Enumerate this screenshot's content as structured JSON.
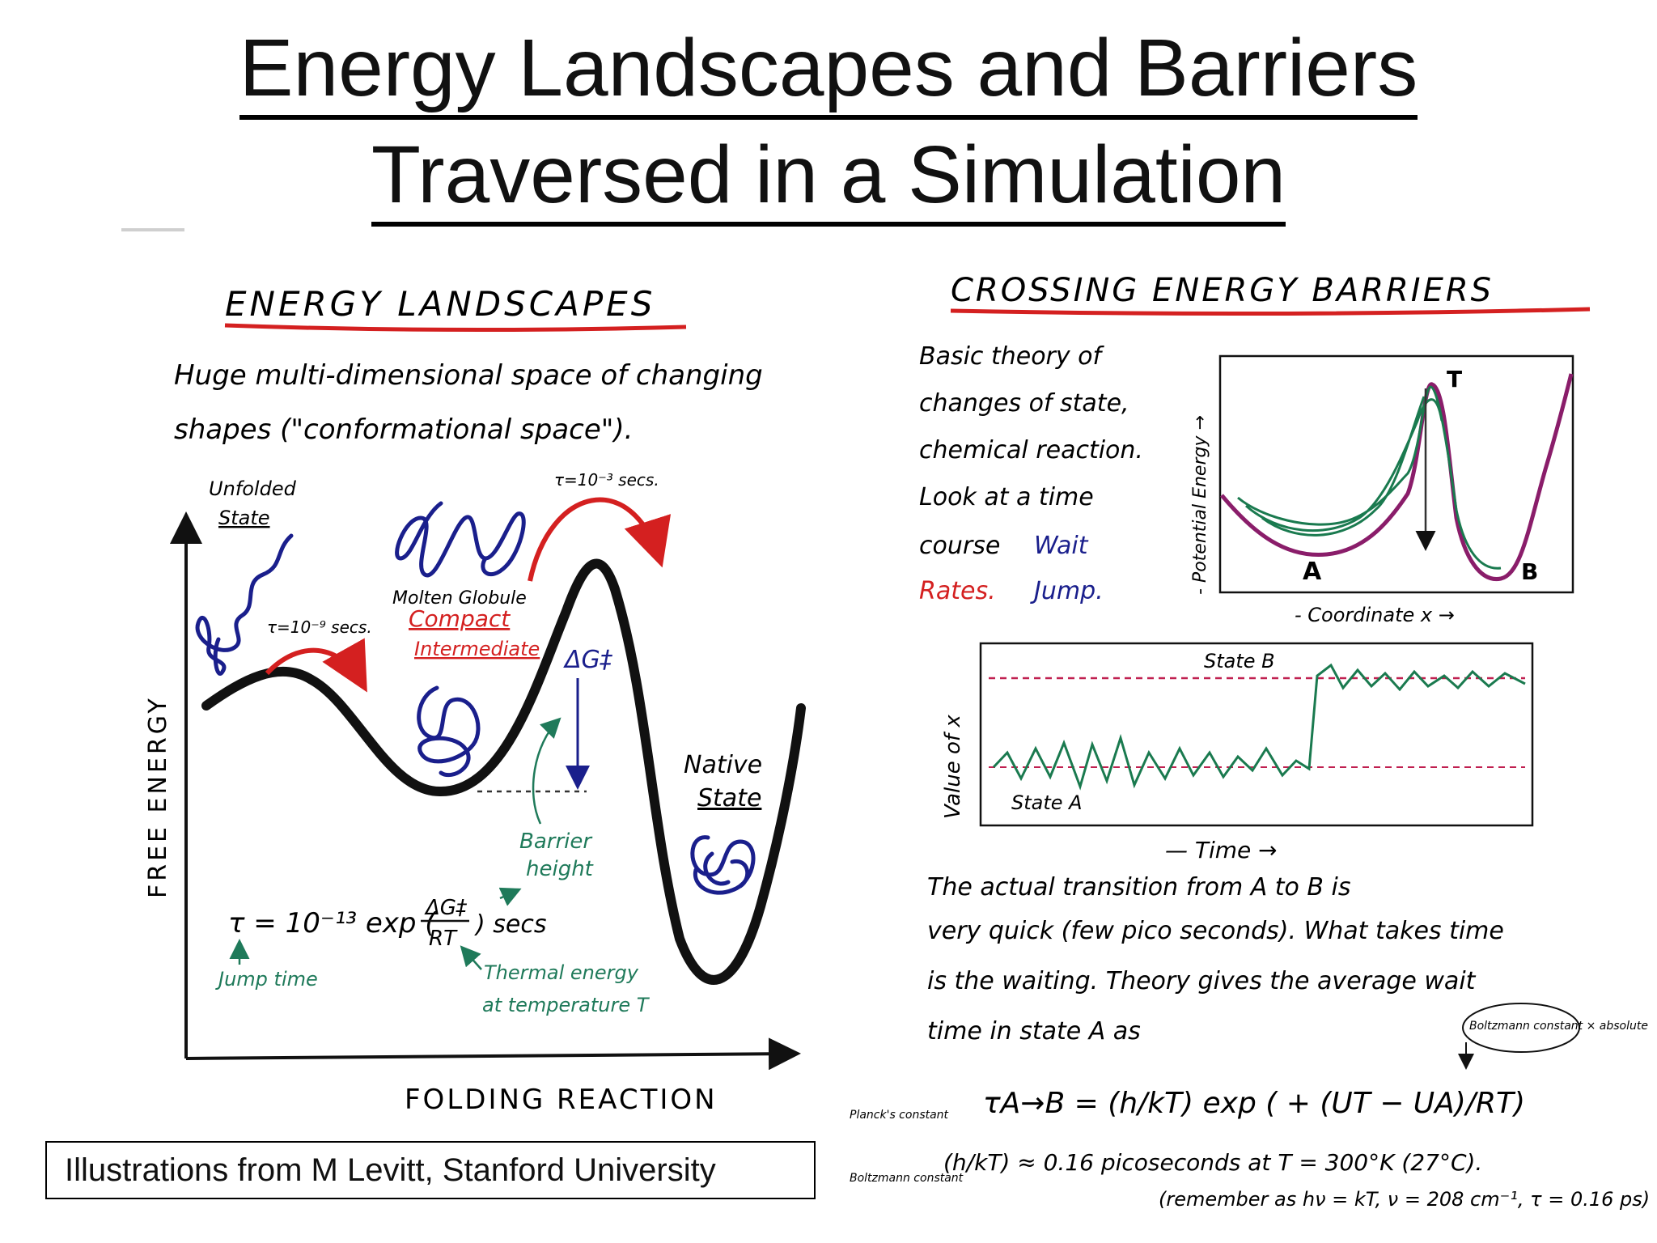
{
  "title": {
    "line1": "Energy Landscapes and Barriers",
    "line2": "Traversed in a Simulation"
  },
  "left_panel": {
    "heading": "ENERGY LANDSCAPES",
    "intro_line1": "Huge multi-dimensional space of changing",
    "intro_line2": "shapes (\"conformational space\").",
    "y_axis_label": "FREE ENERGY",
    "x_axis_label": "FOLDING REACTION",
    "unfolded_line1": "Unfolded",
    "unfolded_line2": "State",
    "fast_time": "τ=10⁻⁹ secs.",
    "slow_time": "τ=10⁻³ secs.",
    "molten_line1": "Molten Globule",
    "molten_line2": "Compact",
    "molten_line3": "Intermediate",
    "delta_g": "ΔG‡",
    "native_line1": "Native",
    "native_line2": "State",
    "barrier_line1": "Barrier",
    "barrier_line2": "height",
    "formula_tau": "τ = 10⁻¹³ exp (",
    "formula_num": "ΔG‡",
    "formula_den": "RT",
    "formula_end": ") secs",
    "jump_time": "Jump time",
    "thermal_line1": "Thermal energy",
    "thermal_line2": "at temperature T"
  },
  "right_panel": {
    "heading": "CROSSING ENERGY BARRIERS",
    "text_lines": [
      "Basic theory of",
      "changes of state,",
      "chemical reaction.",
      "Look at a time",
      "course"
    ],
    "wait_label": "Wait",
    "rates_label": "Rates.",
    "jump_label": "Jump.",
    "energy_axis_label": "- Potential Energy →",
    "coord_label": "- Coordinate x →",
    "point_a": "A",
    "point_b": "B",
    "point_t": "T",
    "state_b": "State B",
    "state_a": "State A",
    "value_axis_label": "Value of x",
    "time_label": "— Time →",
    "body_lines": [
      "The actual transition from A to B is",
      "very quick (few pico seconds). What takes time",
      "is the waiting. Theory gives the average wait",
      "time in state A as"
    ],
    "boltzmann_note": "Boltzmann constant × absolute",
    "formula_left": "τA→B = (h/kT) exp ( + (UT − UA)/RT)",
    "planck_label": "Planck's constant",
    "boltzmann_label": "Boltzmann constant",
    "formula2": "(h/kT) ≈ 0.16 picoseconds at T = 300°K (27°C).",
    "remember": "(remember as hν = kT, ν = 208 cm⁻¹, τ = 0.16 ps)"
  },
  "credit": "Illustrations from M Levitt, Stanford University",
  "colors": {
    "heading_underline": "#d42020",
    "arrow_red": "#d42020",
    "ink_blue": "#1a1f8c",
    "ink_green": "#1f7a5a",
    "trace_green": "#1a7a4f",
    "dash_red": "#c02050"
  }
}
